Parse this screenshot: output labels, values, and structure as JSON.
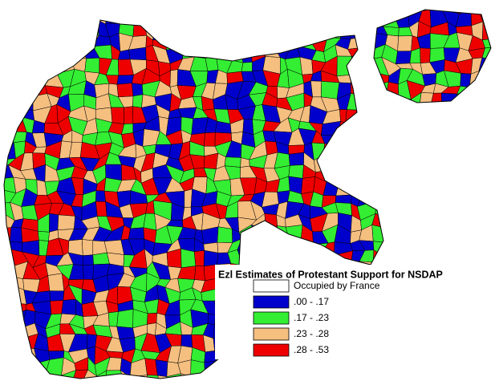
{
  "legend": {
    "title": "Ezl Estimates of Protestant Support for NSDAP",
    "items": [
      {
        "label": "Occupied by France",
        "color": "#ffffff"
      },
      {
        "label": ".00 - .17",
        "color": "#0000cc"
      },
      {
        "label": ".17 - .23",
        "color": "#33ee33"
      },
      {
        "label": ".23 - .28",
        "color": "#f5bf80"
      },
      {
        "label": ".28 - .53",
        "color": "#ee0000"
      }
    ]
  }
}
